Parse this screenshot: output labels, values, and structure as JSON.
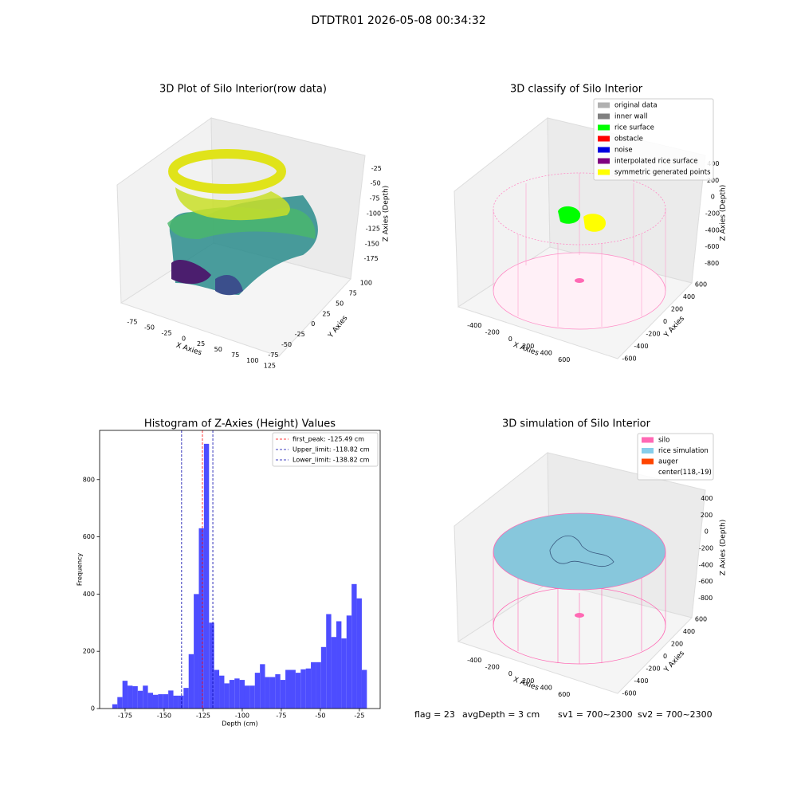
{
  "title": "DTDTR01 2026-05-08 00:34:32",
  "chart_data": [
    {
      "type": "scatter3d",
      "title": "3D Plot of Silo Interior(row data)",
      "xlabel": "X Axies",
      "ylabel": "Y Axies",
      "zlabel": "Z Axies (Depth)",
      "xlim": [
        -90,
        135
      ],
      "xticks": [
        -75,
        -50,
        -25,
        0,
        25,
        50,
        75,
        100,
        125
      ],
      "ylim": [
        -90,
        110
      ],
      "yticks": [
        -75,
        -50,
        -25,
        0,
        25,
        50,
        75,
        100
      ],
      "zlim": [
        -190,
        -10
      ],
      "zticks": [
        -25,
        -50,
        -75,
        -100,
        -125,
        -150,
        -175
      ]
    },
    {
      "type": "scatter3d",
      "title": "3D classify of Silo Interior",
      "xlabel": "X Axies",
      "ylabel": "Y Axies",
      "zlabel": "Z Axies (Depth)",
      "xlim": [
        -500,
        700
      ],
      "xticks": [
        -400,
        -200,
        0,
        200,
        400,
        600
      ],
      "ylim": [
        -700,
        700
      ],
      "yticks": [
        -600,
        -400,
        -200,
        0,
        200,
        400,
        600
      ],
      "zlim": [
        -900,
        500
      ],
      "zticks": [
        400,
        200,
        0,
        -200,
        -400,
        -600,
        -800
      ],
      "series": [
        {
          "name": "original data",
          "color": "#b0b0b0"
        },
        {
          "name": "inner wall",
          "color": "#808080"
        },
        {
          "name": "rice surface",
          "color": "#00ff00"
        },
        {
          "name": "obstacle",
          "color": "#ff0000"
        },
        {
          "name": "noise",
          "color": "#0000e0"
        },
        {
          "name": "interpolated rice surface",
          "color": "#800080"
        },
        {
          "name": "symmetric generated points",
          "color": "#ffff00"
        }
      ]
    },
    {
      "type": "histogram",
      "title": "Histogram of Z-Axies (Height) Values",
      "xlabel": "Depth (cm)",
      "ylabel": "Frequency",
      "color": "#4d4dff",
      "xlim": [
        -191.3,
        -11.7
      ],
      "xticks": [
        -175,
        -150,
        -125,
        -100,
        -75,
        -50,
        -25
      ],
      "ylim": [
        0,
        972
      ],
      "yticks": [
        0,
        200,
        400,
        600,
        800
      ],
      "bins": [
        -183.2,
        -179.94,
        -176.68,
        -173.42,
        -170.16,
        -166.9,
        -163.64,
        -160.38,
        -157.12,
        -153.86,
        -150.6,
        -147.34,
        -144.08,
        -140.82,
        -137.56,
        -134.3,
        -131.04,
        -127.78,
        -124.52,
        -121.26,
        -118.0,
        -114.74,
        -111.48,
        -108.22,
        -104.96,
        -101.7,
        -98.44,
        -95.18,
        -91.92,
        -88.66,
        -85.4,
        -82.14,
        -78.88,
        -75.62,
        -72.36,
        -69.1,
        -65.84,
        -62.58,
        -59.32,
        -56.06,
        -52.8,
        -49.54,
        -46.28,
        -43.02,
        -39.76,
        -36.5,
        -33.24,
        -29.98,
        -26.72,
        -23.46,
        -20.2
      ],
      "values": [
        15,
        40,
        97,
        80,
        78,
        62,
        80,
        55,
        48,
        50,
        50,
        63,
        45,
        45,
        72,
        190,
        400,
        630,
        925,
        300,
        135,
        115,
        88,
        100,
        105,
        100,
        80,
        80,
        125,
        155,
        110,
        110,
        120,
        100,
        135,
        135,
        125,
        137,
        140,
        162,
        162,
        215,
        330,
        250,
        305,
        245,
        325,
        435,
        385,
        135
      ],
      "vlines": [
        {
          "value": -125.49,
          "label": "first_peak: -125.49 cm",
          "color": "#ff0000"
        },
        {
          "value": -118.82,
          "label": "Upper_limit: -118.82 cm",
          "color": "#0000aa"
        },
        {
          "value": -138.82,
          "label": "Lower_limit: -138.82 cm",
          "color": "#0000aa"
        }
      ]
    },
    {
      "type": "scatter3d",
      "title": "3D simulation of Silo Interior",
      "xlabel": "X Axies",
      "ylabel": "Y Axies",
      "zlabel": "Z Axies (Depth)",
      "xlim": [
        -500,
        700
      ],
      "xticks": [
        -400,
        -200,
        0,
        200,
        400,
        600
      ],
      "ylim": [
        -700,
        700
      ],
      "yticks": [
        -600,
        -400,
        -200,
        0,
        200,
        400,
        600
      ],
      "zlim": [
        -900,
        500
      ],
      "zticks": [
        400,
        200,
        0,
        -200,
        -400,
        -600,
        -800
      ],
      "series": [
        {
          "name": "silo",
          "color": "#ff69b4"
        },
        {
          "name": "rice simulation",
          "color": "#87ceeb"
        },
        {
          "name": "auger",
          "color": "#ff4500"
        },
        {
          "name": "center(118,-19)"
        }
      ],
      "footer": [
        "flag = 23",
        "avgDepth = 3 cm",
        "sv1 = 700~2300",
        "sv2 = 700~2300"
      ]
    }
  ]
}
